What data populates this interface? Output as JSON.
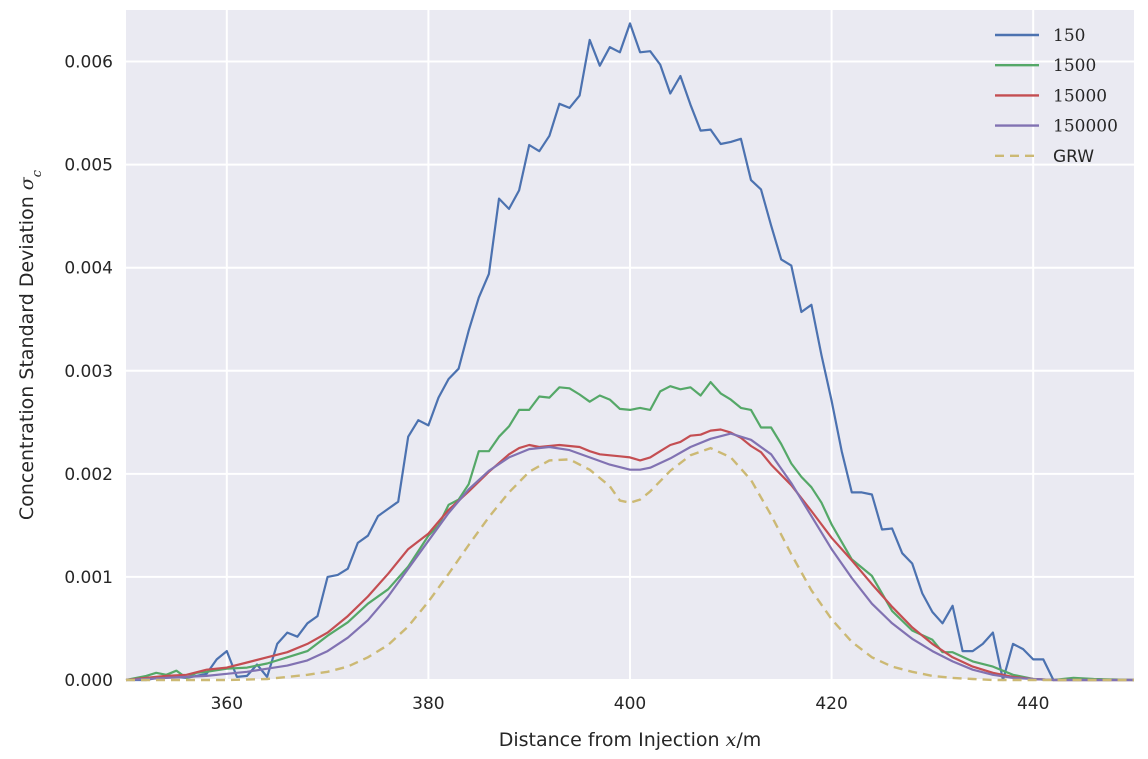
{
  "chart_data": {
    "type": "line",
    "title": "",
    "xlabel": "Distance from Injection x/m",
    "xlabel_text": "Distance from Injection ",
    "xlabel_var": "x",
    "xlabel_unit": "/m",
    "ylabel": "Concentration Standard Deviation σc",
    "ylabel_text": "Concentration Standard Deviation ",
    "ylabel_var": "σ",
    "ylabel_sub": "c",
    "xlim": [
      350,
      450
    ],
    "ylim": [
      0,
      0.0065
    ],
    "xticks": [
      360,
      380,
      400,
      420,
      440
    ],
    "xtick_labels": [
      "360",
      "380",
      "400",
      "420",
      "440"
    ],
    "yticks": [
      0,
      0.001,
      0.002,
      0.003,
      0.004,
      0.005,
      0.006
    ],
    "ytick_labels": [
      "0.000",
      "0.001",
      "0.002",
      "0.003",
      "0.004",
      "0.005",
      "0.006"
    ],
    "grid": true,
    "legend_position": "top-right",
    "series": [
      {
        "name": "150",
        "color": "#4c72b0",
        "style": "solid",
        "x": [
          350,
          352,
          354,
          356,
          358,
          359,
          360,
          361,
          362,
          363,
          364,
          365,
          366,
          367,
          368,
          369,
          370,
          371,
          372,
          373,
          374,
          375,
          376,
          377,
          378,
          379,
          380,
          381,
          382,
          383,
          384,
          385,
          386,
          387,
          388,
          389,
          390,
          391,
          392,
          393,
          394,
          395,
          396,
          397,
          398,
          399,
          400,
          401,
          402,
          403,
          404,
          405,
          406,
          407,
          408,
          409,
          410,
          411,
          412,
          413,
          414,
          415,
          416,
          417,
          418,
          419,
          420,
          421,
          422,
          423,
          424,
          425,
          426,
          427,
          428,
          429,
          430,
          431,
          432,
          433,
          434,
          435,
          436,
          437,
          438,
          439,
          440,
          441,
          442,
          444,
          446,
          450
        ],
        "values": [
          0,
          0,
          4e-05,
          2e-05,
          6e-05,
          0.0002,
          0.00028,
          3e-05,
          4e-05,
          0.00015,
          3e-05,
          0.00035,
          0.00046,
          0.00042,
          0.00055,
          0.00062,
          0.001,
          0.00102,
          0.00108,
          0.00133,
          0.0014,
          0.00159,
          0.00166,
          0.00173,
          0.00236,
          0.00252,
          0.00247,
          0.00274,
          0.00292,
          0.00302,
          0.00339,
          0.00371,
          0.00394,
          0.00467,
          0.00457,
          0.00475,
          0.00519,
          0.00513,
          0.00528,
          0.00559,
          0.00555,
          0.00567,
          0.00621,
          0.00596,
          0.00614,
          0.00609,
          0.00637,
          0.00609,
          0.0061,
          0.00597,
          0.00569,
          0.00586,
          0.00558,
          0.00533,
          0.00534,
          0.0052,
          0.00522,
          0.00525,
          0.00485,
          0.00476,
          0.00441,
          0.00408,
          0.00402,
          0.00357,
          0.00364,
          0.00315,
          0.00271,
          0.00222,
          0.00182,
          0.00182,
          0.0018,
          0.00146,
          0.00147,
          0.00123,
          0.00113,
          0.00084,
          0.00066,
          0.00055,
          0.00072,
          0.00028,
          0.00028,
          0.00035,
          0.00046,
          0,
          0.00035,
          0.0003,
          0.0002,
          0.0002,
          0,
          0,
          0,
          0
        ]
      },
      {
        "name": "1500",
        "color": "#55a868",
        "style": "solid",
        "x": [
          350,
          352,
          353,
          354,
          355,
          356,
          357,
          358,
          360,
          362,
          364,
          366,
          368,
          370,
          372,
          374,
          376,
          378,
          380,
          381,
          382,
          383,
          384,
          385,
          386,
          387,
          388,
          389,
          390,
          391,
          392,
          393,
          394,
          395,
          396,
          397,
          398,
          399,
          400,
          401,
          402,
          403,
          404,
          405,
          406,
          407,
          408,
          409,
          410,
          411,
          412,
          413,
          414,
          415,
          416,
          417,
          418,
          419,
          420,
          422,
          424,
          426,
          428,
          430,
          431,
          432,
          434,
          436,
          438,
          440,
          442,
          444,
          446,
          450
        ],
        "values": [
          0,
          4e-05,
          7e-05,
          5e-05,
          9e-05,
          2e-05,
          7e-05,
          8e-05,
          0.00011,
          0.00012,
          0.00016,
          0.00022,
          0.00028,
          0.00043,
          0.00056,
          0.00074,
          0.00088,
          0.0011,
          0.0014,
          0.0015,
          0.0017,
          0.00175,
          0.0019,
          0.00222,
          0.00222,
          0.00236,
          0.00246,
          0.00262,
          0.00262,
          0.00275,
          0.00274,
          0.00284,
          0.00283,
          0.00277,
          0.0027,
          0.00276,
          0.00272,
          0.00263,
          0.00262,
          0.00264,
          0.00262,
          0.0028,
          0.00285,
          0.00282,
          0.00284,
          0.00276,
          0.00289,
          0.00278,
          0.00272,
          0.00264,
          0.00262,
          0.00245,
          0.00245,
          0.00229,
          0.0021,
          0.00197,
          0.00187,
          0.00172,
          0.00151,
          0.00117,
          0.00101,
          0.00067,
          0.00048,
          0.00039,
          0.00027,
          0.00027,
          0.00018,
          0.00013,
          5e-05,
          1e-05,
          0,
          2e-05,
          1e-05,
          0
        ]
      },
      {
        "name": "15000",
        "color": "#c44e52",
        "style": "solid",
        "x": [
          350,
          352,
          354,
          356,
          358,
          360,
          362,
          364,
          366,
          368,
          370,
          372,
          374,
          376,
          378,
          380,
          382,
          384,
          386,
          388,
          389,
          390,
          391,
          392,
          393,
          394,
          395,
          396,
          397,
          398,
          399,
          400,
          401,
          402,
          403,
          404,
          405,
          406,
          407,
          408,
          409,
          410,
          411,
          412,
          413,
          414,
          416,
          418,
          420,
          422,
          424,
          426,
          428,
          430,
          432,
          434,
          436,
          438,
          440,
          442,
          444,
          446,
          450
        ],
        "values": [
          0,
          2e-05,
          4e-05,
          5e-05,
          0.0001,
          0.00012,
          0.00017,
          0.00022,
          0.00027,
          0.00035,
          0.00046,
          0.00062,
          0.00081,
          0.00103,
          0.00127,
          0.00142,
          0.00165,
          0.00183,
          0.00202,
          0.00219,
          0.00225,
          0.00228,
          0.00226,
          0.00227,
          0.00228,
          0.00227,
          0.00226,
          0.00222,
          0.00219,
          0.00218,
          0.00217,
          0.00216,
          0.00213,
          0.00216,
          0.00222,
          0.00228,
          0.00231,
          0.00237,
          0.00238,
          0.00242,
          0.00243,
          0.0024,
          0.00235,
          0.00227,
          0.00221,
          0.00209,
          0.00189,
          0.00164,
          0.00138,
          0.00116,
          0.00093,
          0.00071,
          0.00051,
          0.00035,
          0.00022,
          0.00013,
          7e-05,
          3e-05,
          1e-05,
          0,
          0,
          0,
          0
        ]
      },
      {
        "name": "150000",
        "color": "#8172b2",
        "style": "solid",
        "x": [
          350,
          352,
          354,
          356,
          358,
          360,
          362,
          364,
          366,
          368,
          370,
          372,
          374,
          376,
          378,
          380,
          382,
          384,
          386,
          388,
          390,
          392,
          394,
          396,
          398,
          400,
          401,
          402,
          404,
          406,
          408,
          410,
          412,
          414,
          416,
          418,
          420,
          422,
          424,
          426,
          428,
          430,
          432,
          434,
          436,
          438,
          440,
          442,
          446,
          450
        ],
        "values": [
          0,
          1e-05,
          2e-05,
          3e-05,
          4e-05,
          6e-05,
          8e-05,
          0.00011,
          0.00014,
          0.00019,
          0.00028,
          0.00041,
          0.00058,
          0.00081,
          0.00108,
          0.00135,
          0.00162,
          0.00185,
          0.00203,
          0.00216,
          0.00224,
          0.00226,
          0.00223,
          0.00216,
          0.00209,
          0.00204,
          0.00204,
          0.00206,
          0.00215,
          0.00226,
          0.00234,
          0.00239,
          0.00233,
          0.00219,
          0.00191,
          0.00159,
          0.00127,
          0.00099,
          0.00074,
          0.00055,
          0.0004,
          0.00028,
          0.00018,
          0.0001,
          5e-05,
          2e-05,
          1e-05,
          0,
          0,
          0
        ]
      },
      {
        "name": "GRW",
        "color": "#ccb974",
        "style": "dashed",
        "x": [
          350,
          356,
          360,
          364,
          366,
          368,
          370,
          372,
          374,
          376,
          378,
          380,
          382,
          384,
          386,
          388,
          390,
          392,
          394,
          396,
          398,
          399,
          400,
          401,
          402,
          404,
          406,
          408,
          410,
          412,
          414,
          416,
          418,
          420,
          422,
          424,
          426,
          428,
          430,
          432,
          434,
          436,
          438,
          440,
          444,
          450
        ],
        "values": [
          0,
          0,
          0,
          1e-05,
          3e-05,
          5e-05,
          8e-05,
          0.00013,
          0.00022,
          0.00034,
          0.00052,
          0.00076,
          0.00103,
          0.00131,
          0.00158,
          0.00182,
          0.00202,
          0.00213,
          0.00214,
          0.00204,
          0.00188,
          0.00174,
          0.00172,
          0.00175,
          0.00183,
          0.00203,
          0.00218,
          0.00225,
          0.00216,
          0.00194,
          0.0016,
          0.00122,
          0.00087,
          0.00059,
          0.00037,
          0.00022,
          0.00013,
          8e-05,
          4e-05,
          2e-05,
          1e-05,
          0,
          0,
          0,
          0,
          0
        ]
      }
    ]
  }
}
